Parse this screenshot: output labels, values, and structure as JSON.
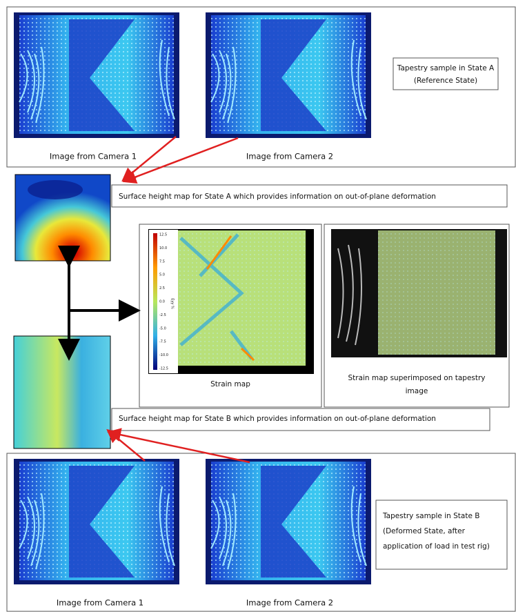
{
  "state_a": {
    "description": [
      "Tapestry sample in State A",
      "(Reference State)"
    ],
    "camera_1_caption": "Image from Camera 1",
    "camera_2_caption": "Image from Camera 2"
  },
  "height_map_a": {
    "caption": "Surface height map for State A which provides information on out-of-plane deformation"
  },
  "strain_map": {
    "caption": "Strain map",
    "colorbar_label": "Eyy %",
    "colorbar_ticks": [
      "12.5",
      "10.0",
      "7.5",
      "5.0",
      "2.5",
      "0.0",
      "-2.5",
      "-5.0",
      "-7.5",
      "-10.0",
      "-12.5"
    ]
  },
  "superimposed": {
    "caption": [
      "Strain map superimposed on tapestry",
      "image"
    ]
  },
  "height_map_b": {
    "caption": "Surface height map for State B which provides information on out-of-plane deformation"
  },
  "state_b": {
    "description": [
      "Tapestry sample in State B",
      "(Deformed State, after",
      "application of load in test rig)"
    ],
    "camera_1_caption": "Image from Camera 1",
    "camera_2_caption": "Image from Camera 2"
  }
}
